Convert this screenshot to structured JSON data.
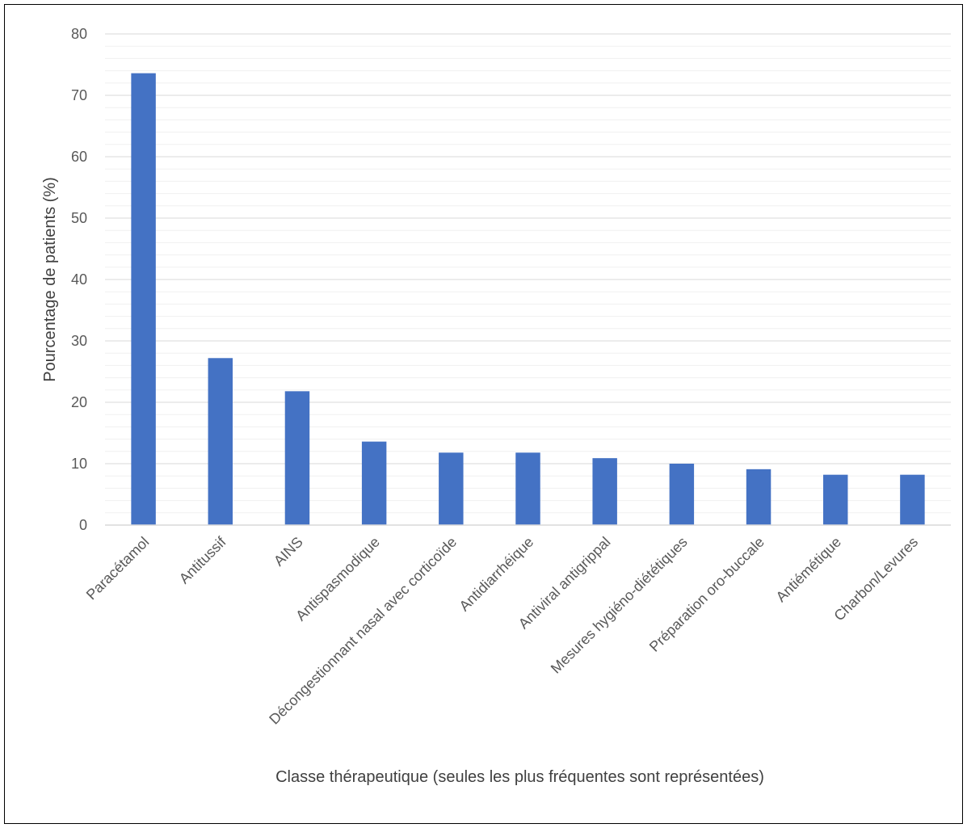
{
  "chart_data": {
    "type": "bar",
    "categories": [
      "Paracétamol",
      "Antitussif",
      "AINS",
      "Antispasmodique",
      "Décongestionnant nasal avec corticoïde",
      "Antidiarrhéique",
      "Antiviral antigrippal",
      "Mesures hygiéno-diététiques",
      "Préparation oro-buccale",
      "Antiémétique",
      "Charbon/Levures"
    ],
    "values": [
      73.6,
      27.2,
      21.8,
      13.6,
      11.8,
      11.8,
      10.9,
      10.0,
      9.1,
      8.2,
      8.2
    ],
    "xlabel": "Classe thérapeutique (seules les plus fréquentes sont représentées)",
    "ylabel": "Pourcentage de patients (%)",
    "ylim": [
      0,
      80
    ],
    "yticks": [
      0,
      10,
      20,
      30,
      40,
      50,
      60,
      70,
      80
    ],
    "ytick_labels": [
      "0",
      "10",
      "20",
      "30",
      "40",
      "50",
      "60",
      "70",
      "80"
    ],
    "grid": true,
    "minor_grid": true,
    "bar_color": "#4472C4",
    "gridline_color": "#D9D9D9"
  }
}
